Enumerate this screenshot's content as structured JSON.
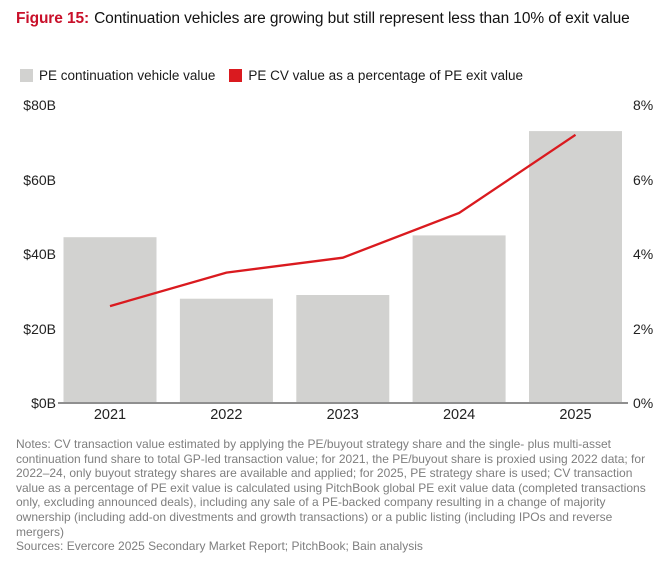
{
  "figure": {
    "label": "Figure 15:",
    "title": "Continuation vehicles are growing but still represent less than 10% of exit value"
  },
  "legend": [
    {
      "label": "PE continuation vehicle value",
      "color": "#d2d2d0",
      "marker": "square"
    },
    {
      "label": "PE CV value as a percentage of PE exit value",
      "color": "#da1a1f",
      "marker": "square"
    }
  ],
  "chart_data": {
    "type": "bar",
    "categories": [
      "2021",
      "2022",
      "2023",
      "2024",
      "2025"
    ],
    "series": [
      {
        "name": "PE continuation vehicle value",
        "type": "bar",
        "axis": "left",
        "unit": "$B",
        "values": [
          44.5,
          28,
          29,
          45,
          73
        ],
        "color": "#d2d2d0"
      },
      {
        "name": "PE CV value as a percentage of PE exit value",
        "type": "line",
        "axis": "right",
        "unit": "%",
        "values": [
          2.6,
          3.5,
          3.9,
          5.1,
          7.2
        ],
        "color": "#da1a1f"
      }
    ],
    "left_axis": {
      "ticks": [
        "$0B",
        "$20B",
        "$40B",
        "$60B",
        "$80B"
      ],
      "min": 0,
      "max": 80
    },
    "right_axis": {
      "ticks": [
        "0%",
        "2%",
        "4%",
        "6%",
        "8%"
      ],
      "min": 0,
      "max": 8
    },
    "grid": false,
    "legend_position": "top",
    "title": "Continuation vehicles are growing but still represent less than 10% of exit value"
  },
  "notes": {
    "notes_text": "Notes: CV transaction value estimated by applying the PE/buyout strategy share and the single- plus multi-asset continuation fund share to total GP-led transaction value; for 2021, the PE/buyout share is proxied using 2022 data; for 2022–24, only buyout strategy shares are available and applied; for 2025, PE strategy share is used; CV transaction value as a percentage of PE exit value is calculated using PitchBook global PE exit value data (completed transactions only, excluding announced deals), including any sale of a PE-backed company resulting in a change of majority ownership (including add-on divestments and growth transactions) or a public listing (including IPOs and reverse mergers)",
    "sources_text": "Sources: Evercore 2025 Secondary Market Report; PitchBook; Bain analysis"
  },
  "colors": {
    "figure_label_red": "#c9102a",
    "line_red": "#da1a1f",
    "bar_gray": "#d2d2d0",
    "axis_line_gray": "#8f8f8f",
    "notes_gray": "#7e7e7e"
  }
}
